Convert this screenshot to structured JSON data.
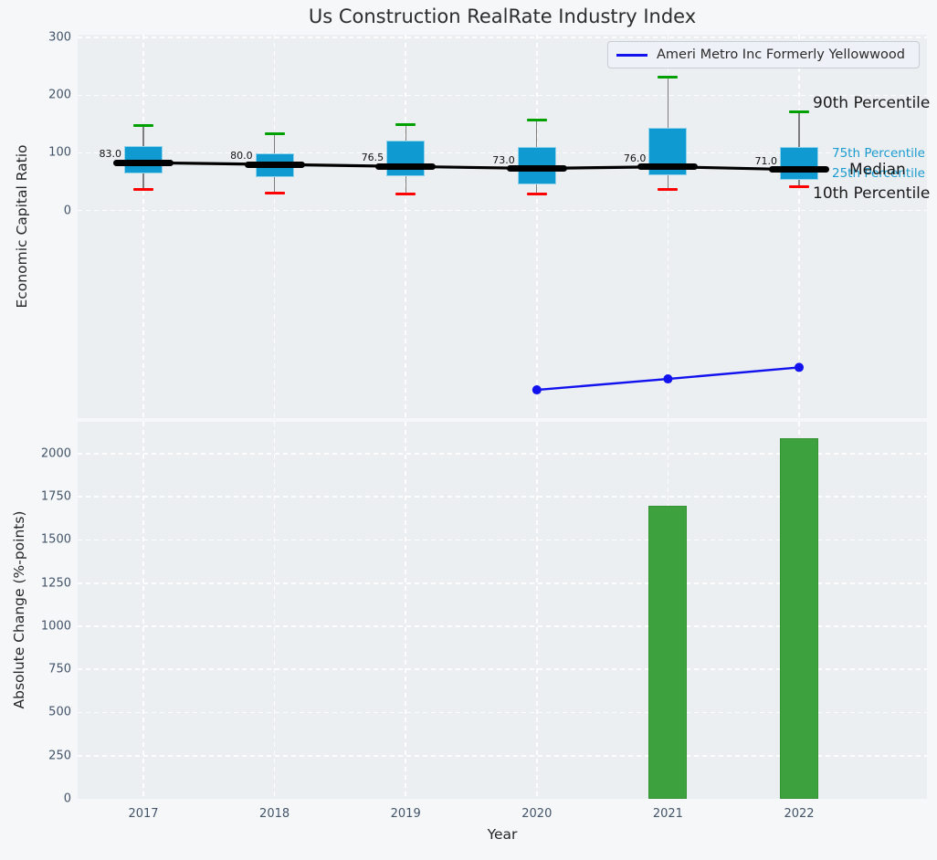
{
  "title": "Us Construction RealRate Industry Index",
  "legend": {
    "label": "Ameri Metro Inc Formerly Yellowwood"
  },
  "colors": {
    "figure_bg": "#f5f7f8",
    "panel_bg": "#ebeff1",
    "grid": "#ffffff",
    "tick_label": "#44546a",
    "box": "#0f9bd2",
    "median": "#000000",
    "p90_cap": "#00a000",
    "p10_cap": "#ff0000",
    "company_line": "#1212ee",
    "bar": "#3da23d",
    "bar_edge": "#359235",
    "annotation_blue": "#1b9bd0"
  },
  "chart_data": [
    {
      "type": "boxplot",
      "title": "Us Construction RealRate Industry Index",
      "ylabel": "Economic Capital Ratio",
      "categories": [
        "2017",
        "2018",
        "2019",
        "2020",
        "2021",
        "2022"
      ],
      "yticks": [
        0,
        100,
        200,
        300
      ],
      "ylim": [
        -360,
        305
      ],
      "grid": "dashed-white",
      "legend_position": "upper right",
      "percentile_labels": {
        "p90": "90th Percentile",
        "p75": "75th Percentile",
        "median": "Median",
        "p25": "25th Percentile",
        "p10": "10th Percentile"
      },
      "boxes": [
        {
          "year": "2017",
          "p10": 36,
          "p25": 64,
          "median": 83.0,
          "p75": 112,
          "p90": 148,
          "median_label": "83.0"
        },
        {
          "year": "2018",
          "p10": 31,
          "p25": 58,
          "median": 80.0,
          "p75": 99,
          "p90": 134,
          "median_label": "80.0"
        },
        {
          "year": "2019",
          "p10": 28,
          "p25": 60,
          "median": 76.5,
          "p75": 121,
          "p90": 149,
          "median_label": "76.5"
        },
        {
          "year": "2020",
          "p10": 29,
          "p25": 45,
          "median": 73.0,
          "p75": 110,
          "p90": 157,
          "median_label": "73.0"
        },
        {
          "year": "2021",
          "p10": 36,
          "p25": 61,
          "median": 76.0,
          "p75": 143,
          "p90": 232,
          "median_label": "76.0"
        },
        {
          "year": "2022",
          "p10": 41,
          "p25": 54,
          "median": 71.0,
          "p75": 110,
          "p90": 171,
          "median_label": "71.0"
        }
      ],
      "company_line": {
        "name": "Ameri Metro Inc Formerly Yellowwood",
        "points": [
          {
            "year": "2020",
            "value": -311
          },
          {
            "year": "2021",
            "value": -292
          },
          {
            "year": "2022",
            "value": -272
          }
        ]
      }
    },
    {
      "type": "bar",
      "ylabel": "Absolute Change (%-points)",
      "xlabel": "Year",
      "categories": [
        "2017",
        "2018",
        "2019",
        "2020",
        "2021",
        "2022"
      ],
      "values": [
        null,
        null,
        null,
        null,
        1700,
        2090
      ],
      "yticks": [
        0,
        250,
        500,
        750,
        1000,
        1250,
        1500,
        1750,
        2000
      ],
      "ylim": [
        0,
        2185
      ],
      "grid": "dashed-white"
    }
  ]
}
